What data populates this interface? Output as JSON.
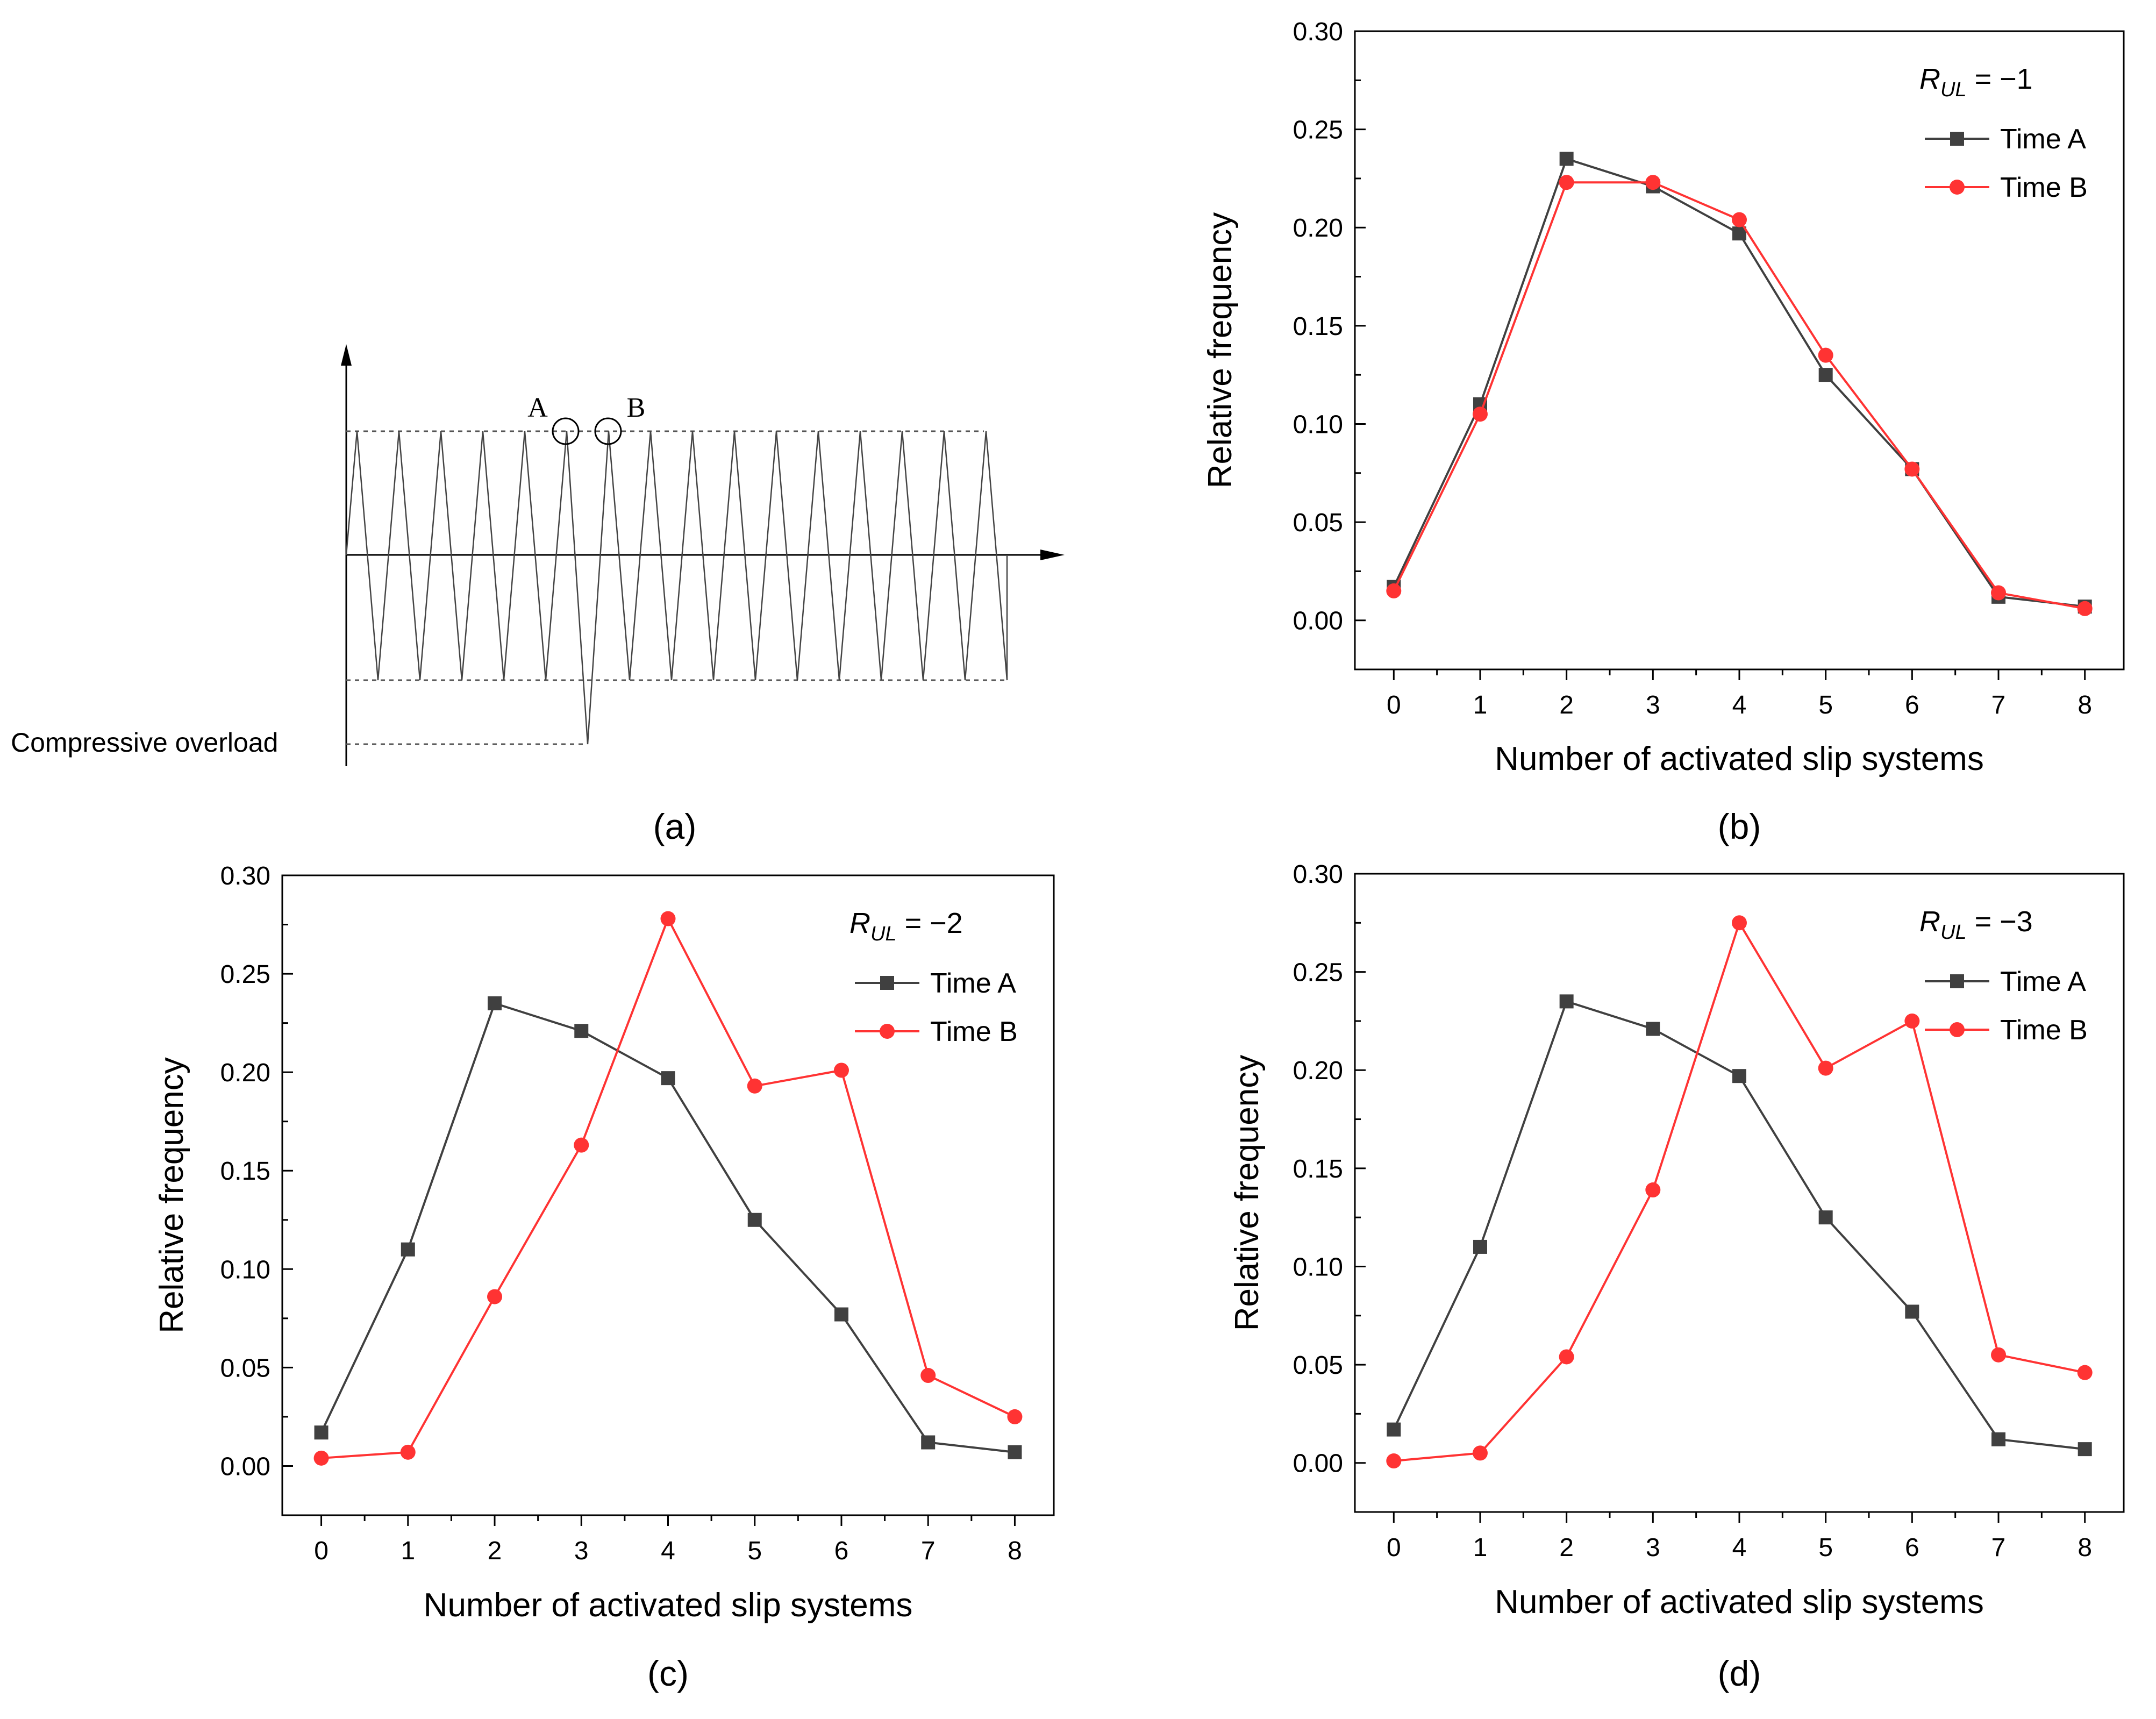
{
  "panels": {
    "a": {
      "label": "(a)",
      "point_a": "A",
      "point_b": "B",
      "overload_label": "Compressive overload"
    }
  },
  "chart_data": [
    {
      "panel": "(b)",
      "type": "line",
      "annotation": {
        "var": "R",
        "sub": "UL",
        "rel": " = −1"
      },
      "xlabel": "Number of activated slip systems",
      "ylabel": "Relative frequency",
      "x": [
        0,
        1,
        2,
        3,
        4,
        5,
        6,
        7,
        8
      ],
      "xlim": [
        -0.45,
        8.45
      ],
      "ylim": [
        -0.025,
        0.3
      ],
      "yticks": [
        "0.00",
        "0.05",
        "0.10",
        "0.15",
        "0.20",
        "0.25",
        "0.30"
      ],
      "legend_position": "top-right",
      "series": [
        {
          "name": "Time A",
          "marker": "square",
          "color": "#404040",
          "values": [
            0.017,
            0.11,
            0.235,
            0.221,
            0.197,
            0.125,
            0.077,
            0.012,
            0.007
          ]
        },
        {
          "name": "Time B",
          "marker": "circle",
          "color": "#ff3333",
          "values": [
            0.015,
            0.105,
            0.223,
            0.223,
            0.204,
            0.135,
            0.077,
            0.014,
            0.006
          ]
        }
      ]
    },
    {
      "panel": "(c)",
      "type": "line",
      "annotation": {
        "var": "R",
        "sub": "UL",
        "rel": " = −2"
      },
      "xlabel": "Number of activated slip systems",
      "ylabel": "Relative frequency",
      "x": [
        0,
        1,
        2,
        3,
        4,
        5,
        6,
        7,
        8
      ],
      "xlim": [
        -0.45,
        8.45
      ],
      "ylim": [
        -0.025,
        0.3
      ],
      "yticks": [
        "0.00",
        "0.05",
        "0.10",
        "0.15",
        "0.20",
        "0.25",
        "0.30"
      ],
      "legend_position": "top-right",
      "series": [
        {
          "name": "Time A",
          "marker": "square",
          "color": "#404040",
          "values": [
            0.017,
            0.11,
            0.235,
            0.221,
            0.197,
            0.125,
            0.077,
            0.012,
            0.007
          ]
        },
        {
          "name": "Time B",
          "marker": "circle",
          "color": "#ff3333",
          "values": [
            0.004,
            0.007,
            0.086,
            0.163,
            0.278,
            0.193,
            0.201,
            0.046,
            0.025
          ]
        }
      ]
    },
    {
      "panel": "(d)",
      "type": "line",
      "annotation": {
        "var": "R",
        "sub": "UL",
        "rel": " = −3"
      },
      "xlabel": "Number of activated slip systems",
      "ylabel": "Relative frequency",
      "x": [
        0,
        1,
        2,
        3,
        4,
        5,
        6,
        7,
        8
      ],
      "xlim": [
        -0.45,
        8.45
      ],
      "ylim": [
        -0.025,
        0.3
      ],
      "yticks": [
        "0.00",
        "0.05",
        "0.10",
        "0.15",
        "0.20",
        "0.25",
        "0.30"
      ],
      "legend_position": "top-right",
      "series": [
        {
          "name": "Time A",
          "marker": "square",
          "color": "#404040",
          "values": [
            0.017,
            0.11,
            0.235,
            0.221,
            0.197,
            0.125,
            0.077,
            0.012,
            0.007
          ]
        },
        {
          "name": "Time B",
          "marker": "circle",
          "color": "#ff3333",
          "values": [
            0.001,
            0.005,
            0.054,
            0.139,
            0.275,
            0.201,
            0.225,
            0.055,
            0.046
          ]
        }
      ]
    }
  ]
}
